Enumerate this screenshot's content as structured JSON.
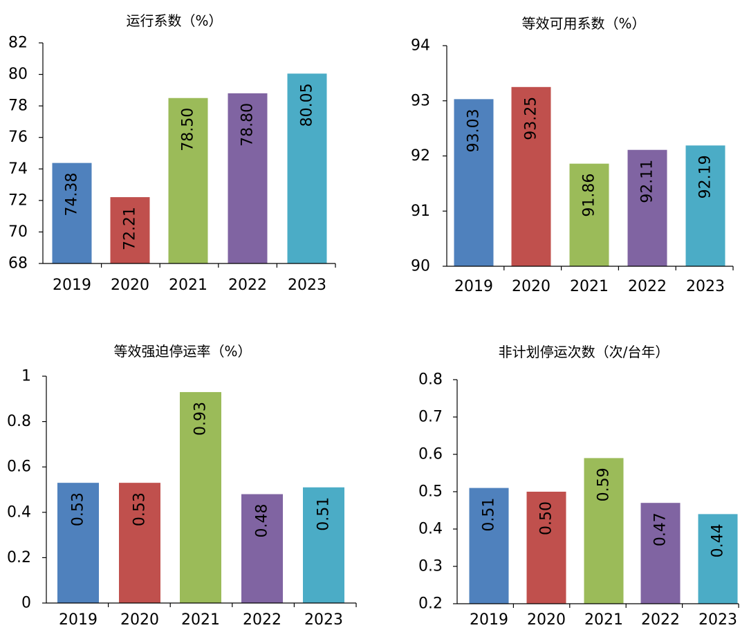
{
  "chart_data": [
    {
      "type": "bar",
      "title": "运行系数（%）",
      "categories": [
        "2019",
        "2020",
        "2021",
        "2022",
        "2023"
      ],
      "values": [
        74.38,
        72.21,
        78.5,
        78.8,
        80.05
      ],
      "value_labels": [
        "74.38",
        "72.21",
        "78.50",
        "78.80",
        "80.05"
      ],
      "ylim": [
        68,
        82
      ],
      "yticks": [
        68,
        70,
        72,
        74,
        76,
        78,
        80,
        82
      ],
      "ytick_labels": [
        "68",
        "70",
        "72",
        "74",
        "76",
        "78",
        "80",
        "82"
      ],
      "colors": [
        "#4f81bd",
        "#c0504d",
        "#9bbb59",
        "#8064a2",
        "#4bacc6"
      ],
      "grid": false
    },
    {
      "type": "bar",
      "title": "等效可用系数（%）",
      "categories": [
        "2019",
        "2020",
        "2021",
        "2022",
        "2023"
      ],
      "values": [
        93.03,
        93.25,
        91.86,
        92.11,
        92.19
      ],
      "value_labels": [
        "93.03",
        "93.25",
        "91.86",
        "92.11",
        "92.19"
      ],
      "ylim": [
        90,
        94
      ],
      "yticks": [
        90,
        91,
        92,
        93,
        94
      ],
      "ytick_labels": [
        "90",
        "91",
        "92",
        "93",
        "94"
      ],
      "colors": [
        "#4f81bd",
        "#c0504d",
        "#9bbb59",
        "#8064a2",
        "#4bacc6"
      ],
      "grid": false
    },
    {
      "type": "bar",
      "title": "等效强迫停运率（%）",
      "categories": [
        "2019",
        "2020",
        "2021",
        "2022",
        "2023"
      ],
      "values": [
        0.53,
        0.53,
        0.93,
        0.48,
        0.51
      ],
      "value_labels": [
        "0.53",
        "0.53",
        "0.93",
        "0.48",
        "0.51"
      ],
      "ylim": [
        0,
        1
      ],
      "yticks": [
        0,
        0.2,
        0.4,
        0.6,
        0.8,
        1
      ],
      "ytick_labels": [
        "0",
        "0.2",
        "0.4",
        "0.6",
        "0.8",
        "1"
      ],
      "colors": [
        "#4f81bd",
        "#c0504d",
        "#9bbb59",
        "#8064a2",
        "#4bacc6"
      ],
      "grid": false
    },
    {
      "type": "bar",
      "title": "非计划停运次数（次/台年）",
      "categories": [
        "2019",
        "2020",
        "2021",
        "2022",
        "2023"
      ],
      "values": [
        0.51,
        0.5,
        0.59,
        0.47,
        0.44
      ],
      "value_labels": [
        "0.51",
        "0.50",
        "0.59",
        "0.47",
        "0.44"
      ],
      "ylim": [
        0.2,
        0.8
      ],
      "yticks": [
        0.2,
        0.3,
        0.4,
        0.5,
        0.6,
        0.7,
        0.8
      ],
      "ytick_labels": [
        "0.2",
        "0.3",
        "0.4",
        "0.5",
        "0.6",
        "0.7",
        "0.8"
      ],
      "colors": [
        "#4f81bd",
        "#c0504d",
        "#9bbb59",
        "#8064a2",
        "#4bacc6"
      ],
      "grid": false
    }
  ]
}
